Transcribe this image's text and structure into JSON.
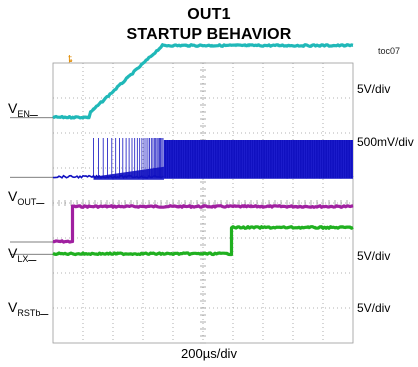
{
  "chart_data": {
    "type": "line",
    "title": "OUT1",
    "subtitle": "STARTUP BEHAVIOR",
    "figure_id": "toc07",
    "timebase": "200µs/div",
    "x_divisions": 10,
    "y_divisions": 8,
    "trigger_marker": "ȶ",
    "channels": [
      {
        "name_main": "V",
        "name_sub": "EN",
        "scale": "5V/div",
        "color": "#a020a0",
        "style": "step",
        "baseline_div": 2.9,
        "x": [
          0,
          0.65,
          0.65,
          10
        ],
        "y": [
          0,
          0,
          1.0,
          1.0
        ]
      },
      {
        "name_main": "V",
        "name_sub": "OUT",
        "scale": "500mV/div",
        "color": "#20b8b8",
        "style": "ramp",
        "baseline_div": 6.45,
        "x": [
          0,
          1.2,
          1.25,
          1.35,
          3.65,
          10
        ],
        "y": [
          0,
          0,
          0.15,
          0.22,
          2.05,
          2.05
        ]
      },
      {
        "name_main": "V",
        "name_sub": "LX",
        "scale": "5V/div",
        "color": "#1010c0",
        "style": "switching",
        "baseline_div": 4.75,
        "x": [
          0,
          1.35,
          3.7,
          10
        ],
        "y": [
          0,
          0,
          1.05,
          1.05
        ]
      },
      {
        "name_main": "V",
        "name_sub": "RSTb",
        "scale": "5V/div",
        "color": "#20b020",
        "style": "step",
        "baseline_div": 2.55,
        "x": [
          0,
          5.95,
          5.95,
          10
        ],
        "y": [
          0,
          0,
          0.75,
          0.75
        ]
      }
    ]
  }
}
